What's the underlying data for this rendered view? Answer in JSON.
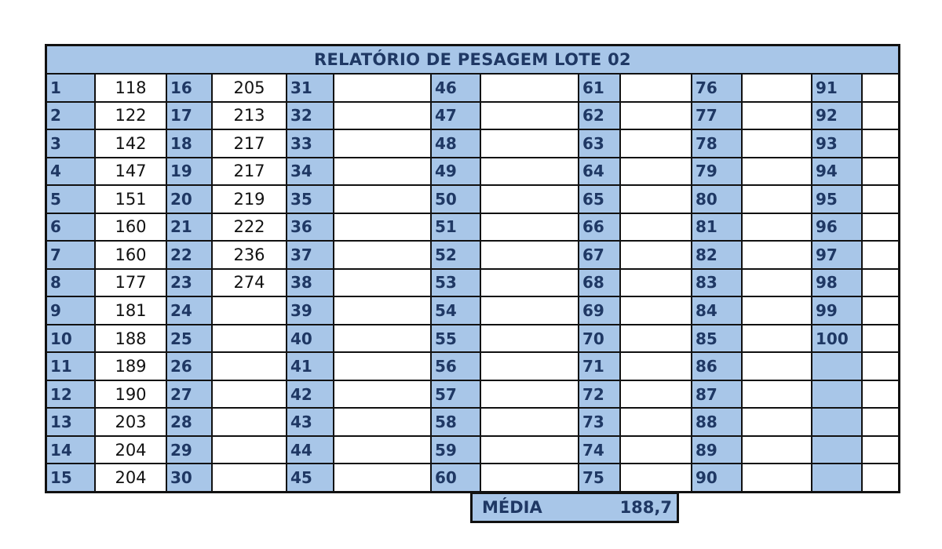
{
  "title": "RELATÓRIO DE PESAGEM LOTE 02",
  "columns": [
    {
      "numbers": [
        "1",
        "2",
        "3",
        "4",
        "5",
        "6",
        "7",
        "8",
        "9",
        "10",
        "11",
        "12",
        "13",
        "14",
        "15"
      ],
      "values": [
        "118",
        "122",
        "142",
        "147",
        "151",
        "160",
        "160",
        "177",
        "181",
        "188",
        "189",
        "190",
        "203",
        "204",
        "204"
      ]
    },
    {
      "numbers": [
        "16",
        "17",
        "18",
        "19",
        "20",
        "21",
        "22",
        "23",
        "24",
        "25",
        "26",
        "27",
        "28",
        "29",
        "30"
      ],
      "values": [
        "205",
        "213",
        "217",
        "217",
        "219",
        "222",
        "236",
        "274",
        "",
        "",
        "",
        "",
        "",
        "",
        ""
      ]
    },
    {
      "numbers": [
        "31",
        "32",
        "33",
        "34",
        "35",
        "36",
        "37",
        "38",
        "39",
        "40",
        "41",
        "42",
        "43",
        "44",
        "45"
      ],
      "values": [
        "",
        "",
        "",
        "",
        "",
        "",
        "",
        "",
        "",
        "",
        "",
        "",
        "",
        "",
        ""
      ]
    },
    {
      "numbers": [
        "46",
        "47",
        "48",
        "49",
        "50",
        "51",
        "52",
        "53",
        "54",
        "55",
        "56",
        "57",
        "58",
        "59",
        "60"
      ],
      "values": [
        "",
        "",
        "",
        "",
        "",
        "",
        "",
        "",
        "",
        "",
        "",
        "",
        "",
        "",
        ""
      ]
    },
    {
      "numbers": [
        "61",
        "62",
        "63",
        "64",
        "65",
        "66",
        "67",
        "68",
        "69",
        "70",
        "71",
        "72",
        "73",
        "74",
        "75"
      ],
      "values": [
        "",
        "",
        "",
        "",
        "",
        "",
        "",
        "",
        "",
        "",
        "",
        "",
        "",
        "",
        ""
      ]
    },
    {
      "numbers": [
        "76",
        "77",
        "78",
        "79",
        "80",
        "81",
        "82",
        "83",
        "84",
        "85",
        "86",
        "87",
        "88",
        "89",
        "90"
      ],
      "values": [
        "",
        "",
        "",
        "",
        "",
        "",
        "",
        "",
        "",
        "",
        "",
        "",
        "",
        "",
        ""
      ]
    },
    {
      "numbers": [
        "91",
        "92",
        "93",
        "94",
        "95",
        "96",
        "97",
        "98",
        "99",
        "100",
        "",
        "",
        "",
        "",
        ""
      ],
      "values": [
        "",
        "",
        "",
        "",
        "",
        "",
        "",
        "",
        "",
        "",
        "",
        "",
        "",
        "",
        ""
      ]
    }
  ],
  "average": {
    "label": "MÉDIA",
    "value": "188,7"
  }
}
